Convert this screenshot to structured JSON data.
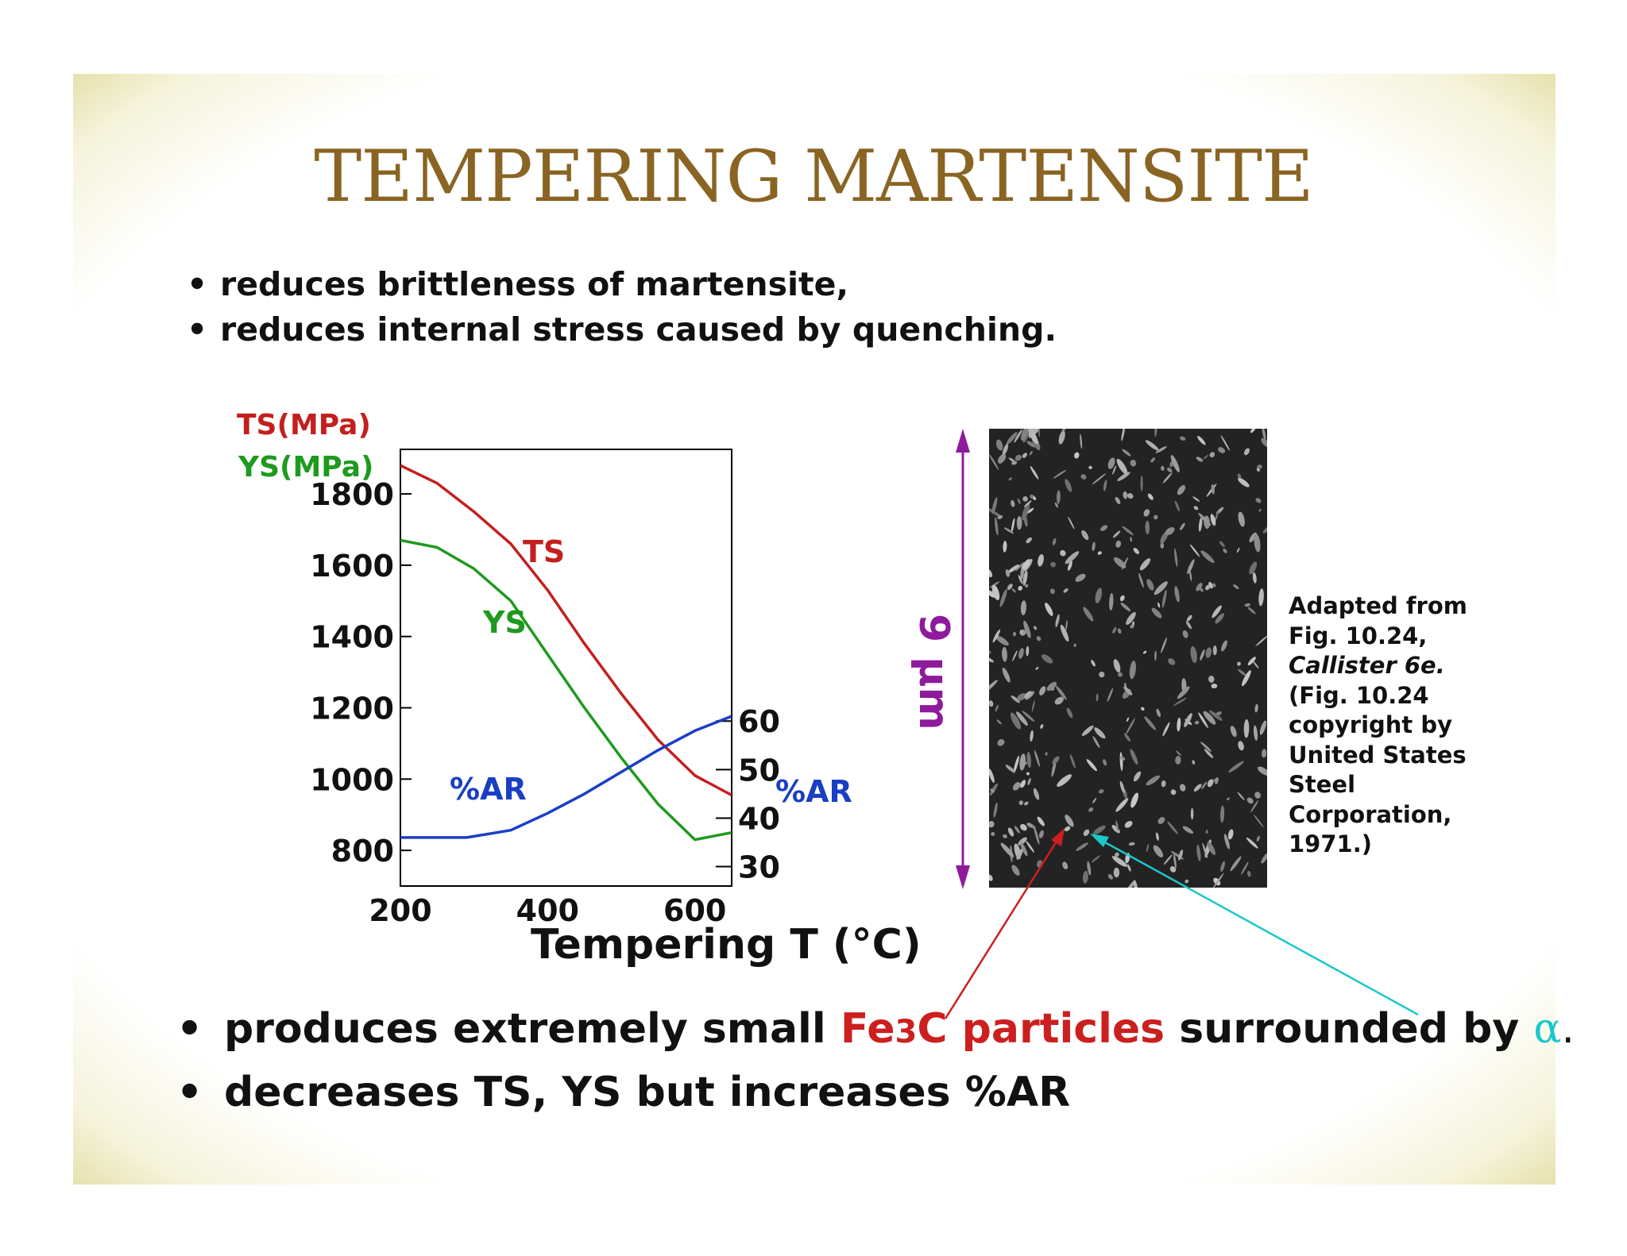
{
  "title": "TEMPERING MARTENSITE",
  "top_bullets": [
    "reduces brittleness of martensite,",
    "reduces internal stress caused by quenching."
  ],
  "bottom_bullets": {
    "b1_pre": "produces extremely small",
    "b1_fe": "Fe",
    "b1_sub": "3",
    "b1_c": "C particles",
    "b1_post": "surrounded by",
    "b1_alpha": "α",
    "b1_end": ".",
    "b2": "decreases TS, YS but increases %AR"
  },
  "colors": {
    "ts": "#c41f1f",
    "ys": "#1e9a1e",
    "ar": "#1a3fc4",
    "title": "#8a6423",
    "scale": "#8e1a9c",
    "particle_arrow": "#cc1f1f",
    "alpha_arrow": "#1cc7c9"
  },
  "chart_data": {
    "type": "line",
    "xlabel": "Tempering T (°C)",
    "ylabel_left_1": "TS(MPa)",
    "ylabel_left_2": "YS(MPa)",
    "ylabel_right": "%AR",
    "xlim": [
      200,
      650
    ],
    "ylim_left": [
      700,
      1925
    ],
    "ylim_right": [
      26,
      116
    ],
    "x_ticks": [
      200,
      400,
      600
    ],
    "y_ticks_left": [
      800,
      1000,
      1200,
      1400,
      1600,
      1800
    ],
    "y_ticks_right": [
      30,
      40,
      50,
      60
    ],
    "series": [
      {
        "name": "TS",
        "axis": "left",
        "x": [
          200,
          250,
          300,
          350,
          400,
          450,
          500,
          550,
          600,
          650
        ],
        "y": [
          1880,
          1830,
          1750,
          1660,
          1530,
          1380,
          1240,
          1110,
          1010,
          955
        ]
      },
      {
        "name": "YS",
        "axis": "left",
        "x": [
          200,
          250,
          300,
          350,
          400,
          450,
          500,
          550,
          600,
          650
        ],
        "y": [
          1670,
          1650,
          1590,
          1500,
          1350,
          1200,
          1060,
          930,
          830,
          850
        ]
      },
      {
        "name": "%AR",
        "axis": "right",
        "x": [
          200,
          250,
          290,
          350,
          400,
          450,
          500,
          550,
          600,
          650
        ],
        "y": [
          36,
          36,
          36,
          37.5,
          41,
          45,
          49.5,
          54,
          58,
          61
        ]
      }
    ]
  },
  "micrograph": {
    "scale_label": "9 μm",
    "caption_1": "Adapted from",
    "caption_2": "Fig. 10.24,",
    "caption_3": "Callister 6e.",
    "caption_4": "(Fig. 10.24",
    "caption_5": "copyright by",
    "caption_6": "United States",
    "caption_7": "Steel",
    "caption_8": "Corporation,",
    "caption_9": "1971.)"
  }
}
